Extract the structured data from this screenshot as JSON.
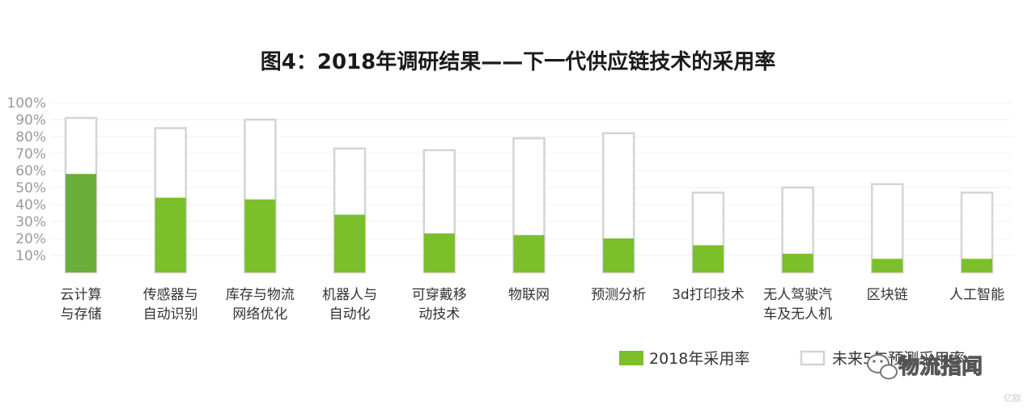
{
  "chart_data": {
    "type": "bar",
    "title": "图4：2018年调研结果——下一代供应链技术的采用率",
    "categories": [
      [
        "云计算",
        "与存储"
      ],
      [
        "传感器与",
        "自动识别"
      ],
      [
        "库存与物流",
        "网络优化"
      ],
      [
        "机器人与",
        "自动化"
      ],
      [
        "可穿戴移",
        "动技术"
      ],
      [
        "物联网"
      ],
      [
        "预测分析"
      ],
      [
        "3d打印技术"
      ],
      [
        "无人驾驶汽",
        "车及无人机"
      ],
      [
        "区块链"
      ],
      [
        "人工智能"
      ]
    ],
    "series": [
      {
        "name": "2018年采用率",
        "values": [
          58,
          44,
          43,
          34,
          23,
          22,
          20,
          16,
          11,
          8,
          8
        ],
        "color": "#7bbf2a"
      },
      {
        "name": "未来5年预测采用率",
        "values": [
          91,
          85,
          90,
          73,
          72,
          79,
          82,
          47,
          50,
          52,
          47
        ],
        "color": "#d4d4d4"
      }
    ],
    "ylim": [
      0,
      100
    ],
    "yticks": [
      "10%",
      "20%",
      "30%",
      "40%",
      "50%",
      "60%",
      "70%",
      "80%",
      "90%",
      "100%"
    ],
    "grid": true,
    "legend_position": "bottom-right"
  },
  "colors": {
    "first_bar": "#6aae3c",
    "outline": "#d4d4d4",
    "grid": "#efefef"
  },
  "watermark": {
    "text": "物流指闻",
    "sub": "亿欧",
    "icon": "wechat-icon"
  }
}
